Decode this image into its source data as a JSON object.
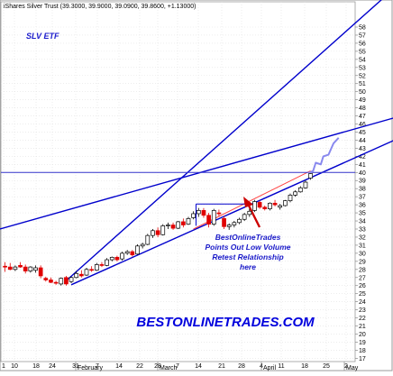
{
  "header": {
    "text": "iShares Silver Trust (39.3000, 39.9000, 39.0900, 39.8600, +1.13000)"
  },
  "brand": "BESTONLINETRADES.COM",
  "annotation": {
    "lines": [
      "BestOnlineTrades",
      "Points Out Low Volume",
      "Retest Relationship",
      "here"
    ]
  },
  "colors": {
    "up_candle": "#000000",
    "down_candle": "#e00000",
    "trendline": "#0000cc",
    "horizontal_line": "#3333cc",
    "arrow": "#cc0000",
    "support": "#ff4444",
    "projection": "#8888ee"
  },
  "chart_data": {
    "type": "candlestick",
    "title": "SLV ETF",
    "y_axis": {
      "side": "right",
      "ticks": [
        17,
        18,
        19,
        20,
        21,
        22,
        23,
        24,
        25,
        26,
        27,
        28,
        29,
        30,
        31,
        32,
        33,
        34,
        35,
        36,
        37,
        38,
        39,
        40,
        41,
        42,
        43,
        44,
        45,
        46,
        47,
        48,
        49,
        50,
        51,
        52,
        53,
        54,
        55,
        56,
        57,
        58
      ]
    },
    "x_axis": {
      "day_labels": [
        "1",
        "10",
        "18",
        "24",
        "31",
        "7",
        "14",
        "22",
        "28",
        "7",
        "14",
        "21",
        "28",
        "4",
        "11",
        "18",
        "25",
        "2"
      ],
      "month_labels": [
        "February",
        "March",
        "April",
        "May"
      ]
    },
    "grid": true,
    "candles": [
      {
        "o": 28.4,
        "h": 28.9,
        "l": 27.7,
        "c": 28.3
      },
      {
        "o": 28.3,
        "h": 28.8,
        "l": 27.9,
        "c": 28.0
      },
      {
        "o": 28.0,
        "h": 28.5,
        "l": 27.8,
        "c": 28.3
      },
      {
        "o": 28.5,
        "h": 28.9,
        "l": 28.2,
        "c": 28.3
      },
      {
        "o": 28.3,
        "h": 28.6,
        "l": 27.5,
        "c": 27.8
      },
      {
        "o": 27.8,
        "h": 28.4,
        "l": 27.6,
        "c": 28.3
      },
      {
        "o": 27.9,
        "h": 28.5,
        "l": 27.6,
        "c": 28.2
      },
      {
        "o": 28.2,
        "h": 28.5,
        "l": 26.9,
        "c": 27.2
      },
      {
        "o": 26.9,
        "h": 27.1,
        "l": 26.5,
        "c": 26.7
      },
      {
        "o": 26.7,
        "h": 27.0,
        "l": 26.3,
        "c": 26.4
      },
      {
        "o": 26.4,
        "h": 26.6,
        "l": 26.1,
        "c": 26.3
      },
      {
        "o": 26.2,
        "h": 27.0,
        "l": 26.0,
        "c": 26.9
      },
      {
        "o": 27.0,
        "h": 27.2,
        "l": 26.0,
        "c": 26.2
      },
      {
        "o": 26.5,
        "h": 27.1,
        "l": 26.3,
        "c": 27.0
      },
      {
        "o": 27.0,
        "h": 27.8,
        "l": 26.9,
        "c": 27.5
      },
      {
        "o": 27.4,
        "h": 27.9,
        "l": 27.0,
        "c": 27.2
      },
      {
        "o": 27.3,
        "h": 28.2,
        "l": 27.2,
        "c": 28.0
      },
      {
        "o": 28.0,
        "h": 28.4,
        "l": 27.7,
        "c": 27.9
      },
      {
        "o": 27.9,
        "h": 28.8,
        "l": 27.8,
        "c": 28.6
      },
      {
        "o": 28.6,
        "h": 28.9,
        "l": 28.3,
        "c": 28.5
      },
      {
        "o": 28.5,
        "h": 29.4,
        "l": 28.4,
        "c": 29.2
      },
      {
        "o": 29.2,
        "h": 29.6,
        "l": 29.0,
        "c": 29.5
      },
      {
        "o": 29.5,
        "h": 29.7,
        "l": 29.0,
        "c": 29.2
      },
      {
        "o": 29.3,
        "h": 30.2,
        "l": 29.1,
        "c": 30.0
      },
      {
        "o": 30.0,
        "h": 30.4,
        "l": 29.8,
        "c": 30.2
      },
      {
        "o": 30.2,
        "h": 30.4,
        "l": 29.6,
        "c": 29.8
      },
      {
        "o": 29.9,
        "h": 31.1,
        "l": 29.8,
        "c": 30.9
      },
      {
        "o": 30.9,
        "h": 31.3,
        "l": 30.6,
        "c": 31.1
      },
      {
        "o": 31.1,
        "h": 32.4,
        "l": 31.0,
        "c": 32.2
      },
      {
        "o": 32.2,
        "h": 33.0,
        "l": 31.9,
        "c": 32.8
      },
      {
        "o": 32.8,
        "h": 33.2,
        "l": 32.0,
        "c": 32.3
      },
      {
        "o": 32.3,
        "h": 33.6,
        "l": 32.2,
        "c": 33.4
      },
      {
        "o": 33.4,
        "h": 33.8,
        "l": 33.0,
        "c": 33.5
      },
      {
        "o": 33.5,
        "h": 33.8,
        "l": 32.9,
        "c": 33.1
      },
      {
        "o": 33.1,
        "h": 34.0,
        "l": 33.0,
        "c": 33.9
      },
      {
        "o": 33.9,
        "h": 34.3,
        "l": 33.2,
        "c": 33.5
      },
      {
        "o": 33.6,
        "h": 34.5,
        "l": 33.5,
        "c": 34.3
      },
      {
        "o": 34.4,
        "h": 35.2,
        "l": 34.2,
        "c": 34.9
      },
      {
        "o": 34.9,
        "h": 35.6,
        "l": 34.5,
        "c": 35.3
      },
      {
        "o": 35.3,
        "h": 35.6,
        "l": 34.4,
        "c": 34.7
      },
      {
        "o": 34.7,
        "h": 35.0,
        "l": 33.2,
        "c": 33.6
      },
      {
        "o": 33.6,
        "h": 35.5,
        "l": 33.4,
        "c": 35.3
      },
      {
        "o": 35.0,
        "h": 35.4,
        "l": 34.6,
        "c": 34.9
      },
      {
        "o": 34.3,
        "h": 34.6,
        "l": 33.0,
        "c": 33.3
      },
      {
        "o": 33.3,
        "h": 33.7,
        "l": 32.9,
        "c": 33.5
      },
      {
        "o": 33.5,
        "h": 34.0,
        "l": 33.2,
        "c": 33.8
      },
      {
        "o": 33.8,
        "h": 34.4,
        "l": 33.6,
        "c": 34.2
      },
      {
        "o": 34.2,
        "h": 35.0,
        "l": 34.0,
        "c": 34.8
      },
      {
        "o": 34.8,
        "h": 35.5,
        "l": 34.5,
        "c": 35.2
      },
      {
        "o": 35.3,
        "h": 36.6,
        "l": 35.1,
        "c": 36.4
      },
      {
        "o": 36.3,
        "h": 36.5,
        "l": 35.5,
        "c": 35.7
      },
      {
        "o": 35.7,
        "h": 35.9,
        "l": 35.3,
        "c": 35.5
      },
      {
        "o": 35.5,
        "h": 36.3,
        "l": 35.3,
        "c": 36.2
      },
      {
        "o": 36.2,
        "h": 36.6,
        "l": 35.8,
        "c": 36.0
      },
      {
        "o": 35.7,
        "h": 36.1,
        "l": 35.4,
        "c": 35.9
      },
      {
        "o": 35.9,
        "h": 36.6,
        "l": 35.8,
        "c": 36.5
      },
      {
        "o": 36.5,
        "h": 37.4,
        "l": 36.3,
        "c": 37.2
      },
      {
        "o": 37.2,
        "h": 37.8,
        "l": 37.0,
        "c": 37.6
      },
      {
        "o": 37.6,
        "h": 38.3,
        "l": 37.5,
        "c": 38.1
      },
      {
        "o": 38.1,
        "h": 39.0,
        "l": 38.0,
        "c": 38.8
      },
      {
        "o": 39.3,
        "h": 39.9,
        "l": 39.09,
        "c": 39.86
      }
    ]
  }
}
